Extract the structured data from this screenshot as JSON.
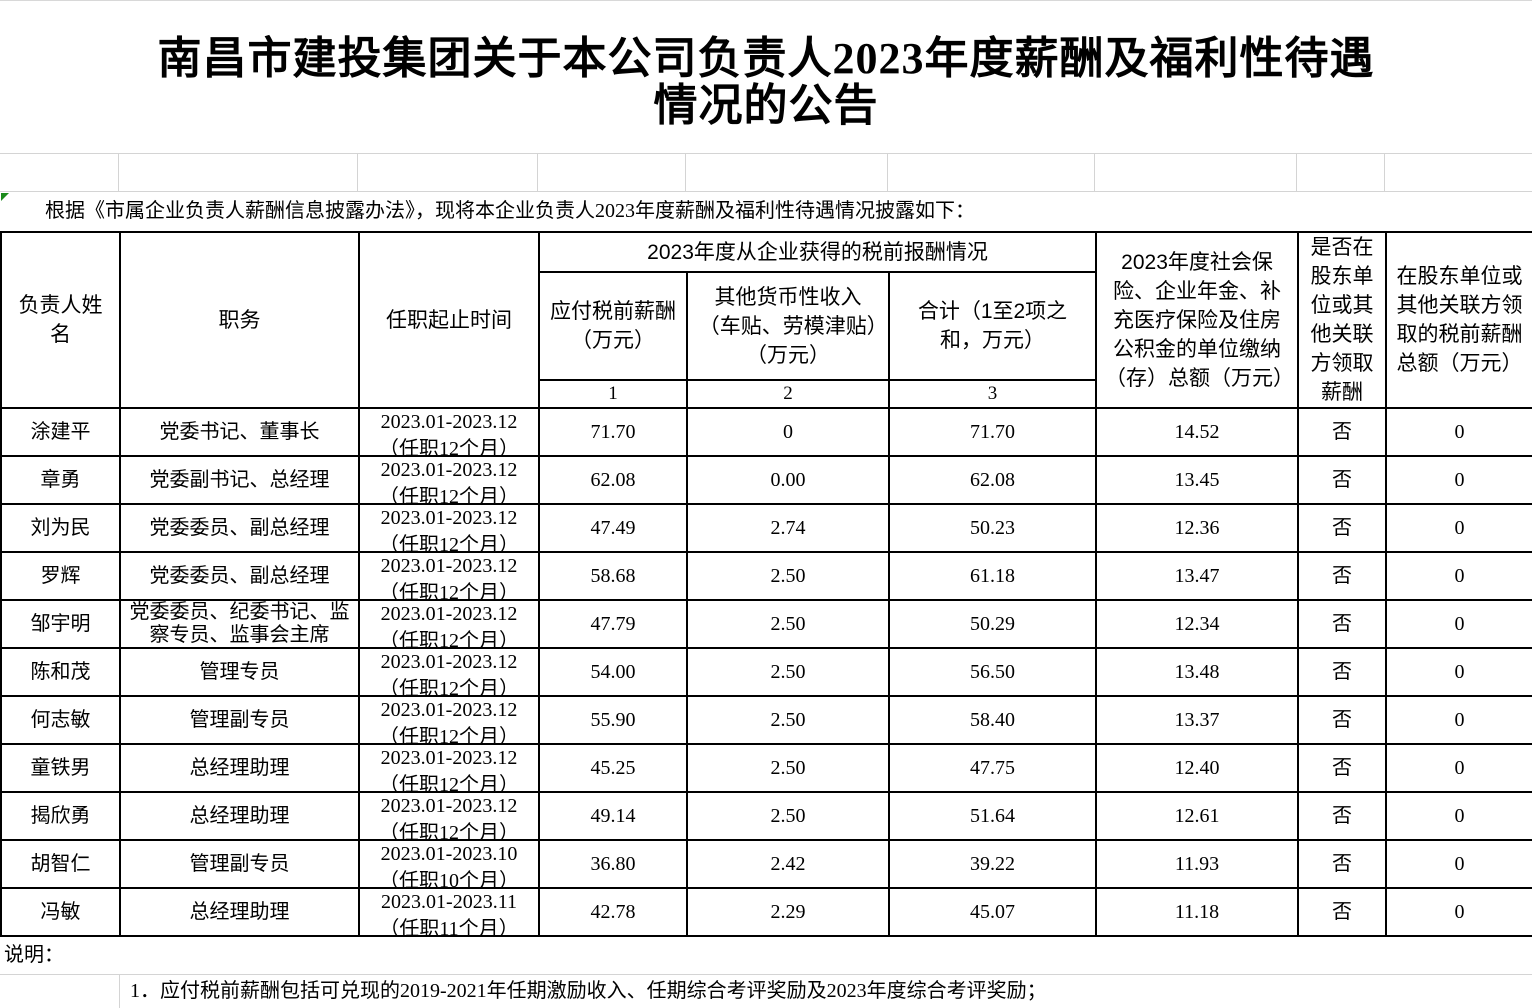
{
  "title": {
    "line1": "南昌市建投集团关于本公司负责人2023年度薪酬及福利性待遇",
    "line2": "情况的公告"
  },
  "intro": "根据《市属企业负责人薪酬信息披露办法》，现将本企业负责人2023年度薪酬及福利性待遇情况披露如下：",
  "table": {
    "group_header": "2023年度从企业获得的税前报酬情况",
    "columns": {
      "name": "负责人姓名",
      "position": "职务",
      "tenure": "任职起止时间",
      "salary": "应付税前薪酬（万元）",
      "other_income": "其他货币性收入（车贴、劳模津贴）（万元）",
      "total": "合计（1至2项之和，万元）",
      "insurance": "2023年度社会保险、企业年金、补充医疗保险及住房公积金的单位缴纳（存）总额（万元）",
      "shareholder_flag": "是否在股东单位或其他关联方领取薪酬",
      "shareholder_amount": "在股东单位或其他关联方领取的税前薪酬总额（万元）"
    },
    "column_numbers": {
      "salary": "1",
      "other_income": "2",
      "total": "3"
    },
    "rows": [
      {
        "name": "涂建平",
        "position": "党委书记、董事长",
        "tenure_line1": "2023.01-2023.12",
        "tenure_line2": "（任职12个月）",
        "salary": "71.70",
        "other_income": "0",
        "total": "71.70",
        "insurance": "14.52",
        "shareholder_flag": "否",
        "shareholder_amount": "0"
      },
      {
        "name": "章勇",
        "position": "党委副书记、总经理",
        "tenure_line1": "2023.01-2023.12",
        "tenure_line2": "（任职12个月）",
        "salary": "62.08",
        "other_income": "0.00",
        "total": "62.08",
        "insurance": "13.45",
        "shareholder_flag": "否",
        "shareholder_amount": "0"
      },
      {
        "name": "刘为民",
        "position": "党委委员、副总经理",
        "tenure_line1": "2023.01-2023.12",
        "tenure_line2": "（任职12个月）",
        "salary": "47.49",
        "other_income": "2.74",
        "total": "50.23",
        "insurance": "12.36",
        "shareholder_flag": "否",
        "shareholder_amount": "0"
      },
      {
        "name": "罗辉",
        "position": "党委委员、副总经理",
        "tenure_line1": "2023.01-2023.12",
        "tenure_line2": "（任职12个月）",
        "salary": "58.68",
        "other_income": "2.50",
        "total": "61.18",
        "insurance": "13.47",
        "shareholder_flag": "否",
        "shareholder_amount": "0"
      },
      {
        "name": "邹宇明",
        "position": "党委委员、纪委书记、监察专员、监事会主席",
        "tenure_line1": "2023.01-2023.12",
        "tenure_line2": "（任职12个月）",
        "salary": "47.79",
        "other_income": "2.50",
        "total": "50.29",
        "insurance": "12.34",
        "shareholder_flag": "否",
        "shareholder_amount": "0"
      },
      {
        "name": "陈和茂",
        "position": "管理专员",
        "tenure_line1": "2023.01-2023.12",
        "tenure_line2": "（任职12个月）",
        "salary": "54.00",
        "other_income": "2.50",
        "total": "56.50",
        "insurance": "13.48",
        "shareholder_flag": "否",
        "shareholder_amount": "0"
      },
      {
        "name": "何志敏",
        "position": "管理副专员",
        "tenure_line1": "2023.01-2023.12",
        "tenure_line2": "（任职12个月）",
        "salary": "55.90",
        "other_income": "2.50",
        "total": "58.40",
        "insurance": "13.37",
        "shareholder_flag": "否",
        "shareholder_amount": "0"
      },
      {
        "name": "童铁男",
        "position": "总经理助理",
        "tenure_line1": "2023.01-2023.12",
        "tenure_line2": "（任职12个月）",
        "salary": "45.25",
        "other_income": "2.50",
        "total": "47.75",
        "insurance": "12.40",
        "shareholder_flag": "否",
        "shareholder_amount": "0"
      },
      {
        "name": "揭欣勇",
        "position": "总经理助理",
        "tenure_line1": "2023.01-2023.12",
        "tenure_line2": "（任职12个月）",
        "salary": "49.14",
        "other_income": "2.50",
        "total": "51.64",
        "insurance": "12.61",
        "shareholder_flag": "否",
        "shareholder_amount": "0"
      },
      {
        "name": "胡智仁",
        "position": "管理副专员",
        "tenure_line1": "2023.01-2023.10",
        "tenure_line2": "（任职10个月）",
        "salary": "36.80",
        "other_income": "2.42",
        "total": "39.22",
        "insurance": "11.93",
        "shareholder_flag": "否",
        "shareholder_amount": "0"
      },
      {
        "name": "冯敏",
        "position": "总经理助理",
        "tenure_line1": "2023.01-2023.11",
        "tenure_line2": "（任职11个月）",
        "salary": "42.78",
        "other_income": "2.29",
        "total": "45.07",
        "insurance": "11.18",
        "shareholder_flag": "否",
        "shareholder_amount": "0"
      }
    ]
  },
  "notes": {
    "label": "说明：",
    "item1": "1．应付税前薪酬包括可兑现的2019-2021年任期激励收入、任期综合考评奖励及2023年度综合考评奖励；"
  },
  "colors": {
    "table_border": "#000000",
    "gridline": "#d4d4d4",
    "error_indicator_green": "#1a8a1a"
  }
}
